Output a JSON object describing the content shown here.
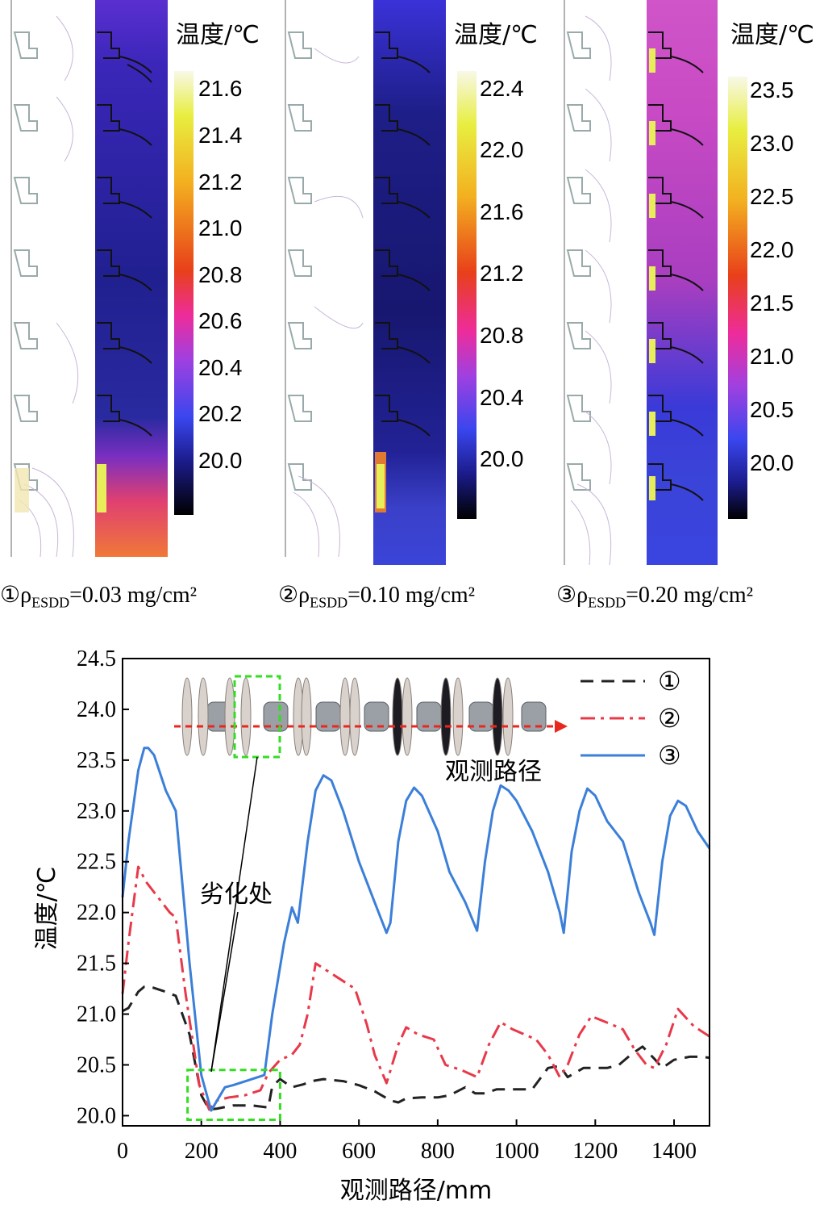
{
  "panels": [
    {
      "caption_prefix": "①ρ",
      "caption_sub": "ESDD",
      "caption_suffix": "=0.03 mg/cm²",
      "colorbar_title": "温度/℃",
      "colorbar_ticks": [
        "21.6",
        "21.4",
        "21.2",
        "21.0",
        "20.8",
        "20.6",
        "20.4",
        "20.2",
        "20.0"
      ]
    },
    {
      "caption_prefix": "②ρ",
      "caption_sub": "ESDD",
      "caption_suffix": "=0.10 mg/cm²",
      "colorbar_title": "温度/℃",
      "colorbar_ticks": [
        "22.4",
        "22.0",
        "21.6",
        "21.2",
        "20.8",
        "20.4",
        "20.0"
      ]
    },
    {
      "caption_prefix": "③ρ",
      "caption_sub": "ESDD",
      "caption_suffix": "=0.20 mg/cm²",
      "colorbar_title": "温度/℃",
      "colorbar_ticks": [
        "23.5",
        "23.0",
        "22.5",
        "22.0",
        "21.5",
        "21.0",
        "20.5",
        "20.0"
      ]
    }
  ],
  "colors": {
    "series1": "#222222",
    "series2": "#e8394a",
    "series3": "#3b7fd9",
    "highlight_box": "#33dd22",
    "arrow": "#e8281e"
  },
  "chart_data": {
    "type": "line",
    "xlabel": "观测路径/mm",
    "ylabel": "温度/℃",
    "xlim": [
      0,
      1490
    ],
    "ylim": [
      19.9,
      24.5
    ],
    "xticks": [
      0,
      200,
      400,
      600,
      800,
      1000,
      1200,
      1400
    ],
    "yticks": [
      20.0,
      20.5,
      21.0,
      21.5,
      22.0,
      22.5,
      23.0,
      23.5,
      24.0,
      24.5
    ],
    "annotation": "劣化处",
    "inset_label": "观测路径",
    "series": [
      {
        "name": "①",
        "x": [
          0,
          15,
          40,
          55,
          70,
          110,
          135,
          170,
          200,
          220,
          240,
          280,
          330,
          370,
          380,
          400,
          430,
          460,
          480,
          510,
          560,
          600,
          640,
          680,
          700,
          720,
          760,
          800,
          830,
          870,
          895,
          920,
          950,
          1000,
          1040,
          1080,
          1110,
          1130,
          1170,
          1230,
          1260,
          1290,
          1320,
          1350,
          1370,
          1400,
          1440,
          1470,
          1490
        ],
        "y": [
          21.03,
          21.06,
          21.22,
          21.27,
          21.27,
          21.22,
          21.18,
          20.8,
          20.2,
          20.06,
          20.07,
          20.1,
          20.1,
          20.08,
          20.29,
          20.36,
          20.28,
          20.31,
          20.34,
          20.36,
          20.34,
          20.3,
          20.24,
          20.15,
          20.13,
          20.17,
          20.18,
          20.18,
          20.2,
          20.28,
          20.22,
          20.22,
          20.26,
          20.26,
          20.26,
          20.47,
          20.49,
          20.38,
          20.47,
          20.47,
          20.5,
          20.6,
          20.68,
          20.56,
          20.47,
          20.55,
          20.58,
          20.58,
          20.57
        ]
      },
      {
        "name": "②",
        "x": [
          0,
          15,
          40,
          60,
          80,
          120,
          135,
          160,
          195,
          220,
          240,
          270,
          310,
          350,
          370,
          400,
          430,
          450,
          470,
          490,
          530,
          590,
          620,
          640,
          670,
          700,
          720,
          750,
          790,
          820,
          860,
          900,
          930,
          960,
          990,
          1020,
          1050,
          1080,
          1110,
          1130,
          1160,
          1190,
          1240,
          1270,
          1300,
          1330,
          1350,
          1380,
          1410,
          1450,
          1490
        ],
        "y": [
          21.2,
          21.7,
          22.45,
          22.3,
          22.2,
          22.0,
          21.95,
          21.2,
          20.3,
          20.06,
          20.15,
          20.18,
          20.2,
          20.25,
          20.42,
          20.55,
          20.6,
          20.7,
          21.0,
          21.5,
          21.4,
          21.25,
          20.9,
          20.6,
          20.32,
          20.7,
          20.87,
          20.8,
          20.75,
          20.5,
          20.45,
          20.38,
          20.7,
          20.92,
          20.85,
          20.8,
          20.75,
          20.6,
          20.38,
          20.5,
          20.8,
          20.98,
          20.9,
          20.85,
          20.65,
          20.5,
          20.47,
          20.7,
          21.05,
          20.88,
          20.78
        ]
      },
      {
        "name": "③",
        "x": [
          0,
          15,
          40,
          55,
          65,
          80,
          110,
          135,
          170,
          200,
          225,
          240,
          260,
          280,
          320,
          360,
          380,
          410,
          430,
          445,
          470,
          490,
          510,
          530,
          560,
          600,
          640,
          670,
          680,
          700,
          720,
          740,
          760,
          800,
          830,
          870,
          900,
          920,
          940,
          960,
          980,
          1000,
          1040,
          1080,
          1110,
          1120,
          1140,
          1160,
          1180,
          1200,
          1230,
          1270,
          1310,
          1340,
          1350,
          1370,
          1390,
          1410,
          1430,
          1460,
          1490
        ],
        "y": [
          22.15,
          22.7,
          23.4,
          23.62,
          23.62,
          23.55,
          23.2,
          23.0,
          21.5,
          20.4,
          20.05,
          20.15,
          20.28,
          20.3,
          20.35,
          20.4,
          21.0,
          21.7,
          22.05,
          21.9,
          22.7,
          23.2,
          23.35,
          23.3,
          23.0,
          22.5,
          22.1,
          21.8,
          21.9,
          22.7,
          23.1,
          23.23,
          23.15,
          22.8,
          22.4,
          22.1,
          21.82,
          22.5,
          23.0,
          23.25,
          23.2,
          23.1,
          22.8,
          22.4,
          22.0,
          21.8,
          22.6,
          23.0,
          23.22,
          23.15,
          22.9,
          22.7,
          22.2,
          21.9,
          21.78,
          22.5,
          22.95,
          23.1,
          23.05,
          22.8,
          22.63
        ]
      }
    ]
  }
}
